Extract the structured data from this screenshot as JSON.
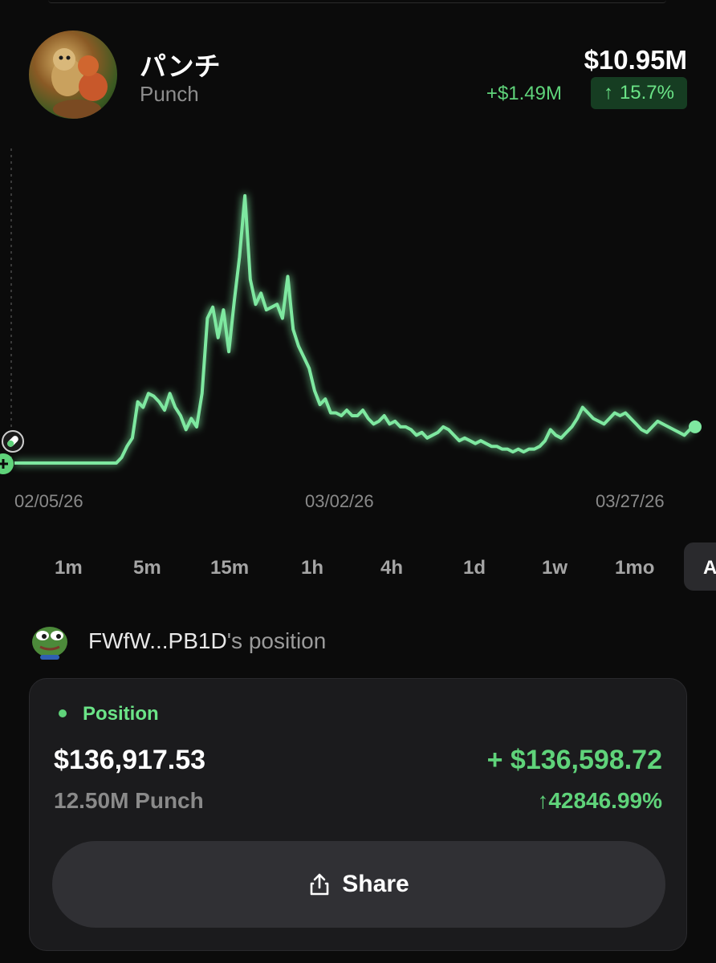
{
  "header": {
    "token_name": "パンチ",
    "token_ticker": "Punch",
    "market_cap": "$10.95M",
    "change_abs": "+$1.49M",
    "change_pct": "15.7%",
    "change_arrow": "↑"
  },
  "chart_data": {
    "type": "line",
    "x_labels": [
      "02/05/26",
      "03/02/26",
      "03/27/26"
    ],
    "values": [
      0.0,
      0.0,
      0.0,
      0.0,
      0.0,
      0.0,
      0.0,
      0.0,
      0.0,
      0.0,
      0.0,
      0.0,
      0.0,
      0.0,
      0.0,
      0.0,
      0.0,
      0.0,
      0.0,
      0.0,
      0.02,
      0.06,
      0.09,
      0.22,
      0.2,
      0.25,
      0.24,
      0.22,
      0.19,
      0.25,
      0.2,
      0.17,
      0.12,
      0.16,
      0.13,
      0.25,
      0.52,
      0.56,
      0.45,
      0.55,
      0.4,
      0.58,
      0.74,
      0.96,
      0.66,
      0.57,
      0.61,
      0.55,
      0.56,
      0.57,
      0.52,
      0.67,
      0.48,
      0.42,
      0.38,
      0.34,
      0.26,
      0.21,
      0.23,
      0.18,
      0.18,
      0.17,
      0.19,
      0.17,
      0.17,
      0.19,
      0.16,
      0.14,
      0.15,
      0.17,
      0.14,
      0.15,
      0.13,
      0.13,
      0.12,
      0.1,
      0.11,
      0.09,
      0.1,
      0.11,
      0.13,
      0.12,
      0.1,
      0.08,
      0.09,
      0.08,
      0.07,
      0.08,
      0.07,
      0.06,
      0.06,
      0.05,
      0.05,
      0.04,
      0.05,
      0.04,
      0.05,
      0.05,
      0.06,
      0.08,
      0.12,
      0.1,
      0.09,
      0.11,
      0.13,
      0.16,
      0.2,
      0.18,
      0.16,
      0.15,
      0.14,
      0.16,
      0.18,
      0.17,
      0.18,
      0.16,
      0.14,
      0.12,
      0.11,
      0.13,
      0.15,
      0.14,
      0.13,
      0.12,
      0.11,
      0.1,
      0.12,
      0.13
    ],
    "series_color": "#7ee8a0",
    "baseline_start": true
  },
  "timeframes": [
    "1m",
    "5m",
    "15m",
    "1h",
    "4h",
    "1d",
    "1w",
    "1mo"
  ],
  "timeframe_active": "A",
  "owner": {
    "name": "FWfW...PB1D",
    "suffix": "'s position"
  },
  "position": {
    "title": "Position",
    "value": "$136,917.53",
    "amount": "12.50M Punch",
    "pnl": "+ $136,598.72",
    "pnl_pct": "42846.99%",
    "pnl_arrow": "↑",
    "share_label": "Share"
  },
  "colors": {
    "accent_green": "#5fd37a",
    "background": "#0b0b0b",
    "card": "#1b1b1d"
  }
}
